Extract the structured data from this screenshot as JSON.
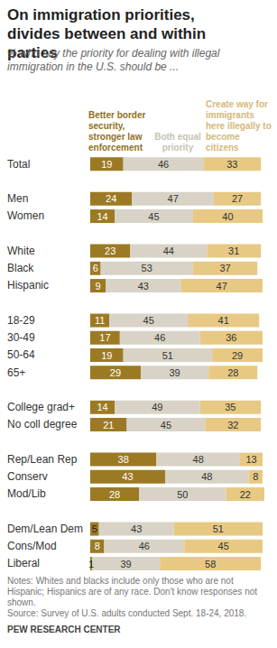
{
  "chart_data": {
    "type": "bar",
    "orientation": "horizontal",
    "stacked": true,
    "data_labels": true,
    "tick_labels": false,
    "title": "On immigration priorities, divides between and within parties",
    "subtitle": "% who say the priority for dealing with illegal immigration in the U.S. should be ...",
    "notes": "Notes: Whites and blacks include only those who are not Hispanic; Hispanics are of any race. Don't know responses not shown.",
    "source": "Source: Survey of U.S. adults conducted Sept. 18-24, 2018.",
    "credit": "PEW RESEARCH CENTER",
    "xlim": [
      0,
      100
    ],
    "categories": [
      "Total",
      null,
      "Men",
      "Women",
      null,
      "White",
      "Black",
      "Hispanic",
      null,
      "18-29",
      "30-49",
      "50-64",
      "65+",
      null,
      "College grad+",
      "No coll degree",
      null,
      "Rep/Lean Rep",
      "Conserv",
      "Mod/Lib",
      null,
      "Dem/Lean Dem",
      "Cons/Mod",
      "Liberal"
    ],
    "series": [
      {
        "name": "Better border security, stronger law enforcement",
        "color": "#9c7a24",
        "values": [
          19,
          null,
          24,
          14,
          null,
          23,
          6,
          9,
          null,
          11,
          17,
          19,
          29,
          null,
          14,
          21,
          null,
          38,
          43,
          28,
          null,
          5,
          8,
          1
        ]
      },
      {
        "name": "Both equal priority",
        "color": "#d8d3c6",
        "values": [
          46,
          null,
          47,
          45,
          null,
          44,
          53,
          43,
          null,
          45,
          46,
          51,
          39,
          null,
          49,
          45,
          null,
          48,
          48,
          50,
          null,
          43,
          46,
          39
        ]
      },
      {
        "name": "Create way for immigrants here illegally to become citizens",
        "color": "#e8c983",
        "values": [
          33,
          null,
          27,
          40,
          null,
          31,
          37,
          47,
          null,
          41,
          36,
          29,
          28,
          null,
          35,
          32,
          null,
          13,
          8,
          22,
          null,
          51,
          45,
          58
        ]
      }
    ]
  }
}
